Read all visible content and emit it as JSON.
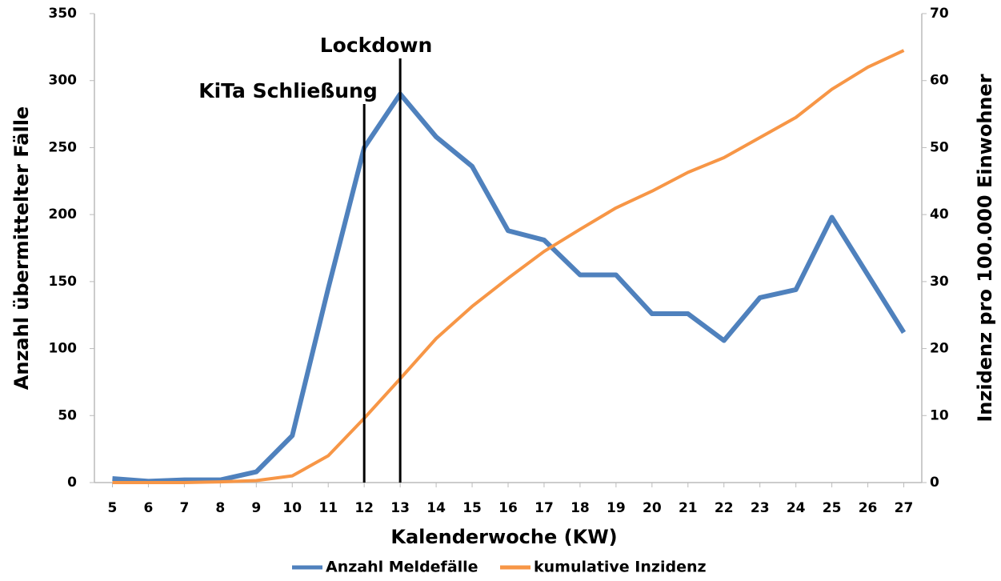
{
  "chart_data": {
    "type": "line",
    "x_label": "Kalenderwoche (KW)",
    "y_label": "Anzahl übermittelter Fälle",
    "y2_label": "Inzidenz pro 100.000 Einwohner",
    "x": [
      5,
      6,
      7,
      8,
      9,
      10,
      11,
      12,
      13,
      14,
      15,
      16,
      17,
      18,
      19,
      20,
      21,
      22,
      23,
      24,
      25,
      26,
      27
    ],
    "xlim": [
      4.5,
      27.5
    ],
    "xticks": [
      5,
      6,
      7,
      8,
      9,
      10,
      11,
      12,
      13,
      14,
      15,
      16,
      17,
      18,
      19,
      20,
      21,
      22,
      23,
      24,
      25,
      26,
      27
    ],
    "ylim": [
      0,
      350
    ],
    "yticks": [
      0,
      50,
      100,
      150,
      200,
      250,
      300,
      350
    ],
    "y2lim": [
      0,
      70
    ],
    "y2ticks": [
      0,
      10,
      20,
      30,
      40,
      50,
      60,
      70
    ],
    "grid": false,
    "legend": "bottom",
    "series": [
      {
        "name": "Anzahl Meldefälle",
        "color": "#4f81bd",
        "values": [
          3,
          1,
          2,
          2,
          8,
          35,
          145,
          250,
          290,
          258,
          236,
          188,
          181,
          155,
          155,
          126,
          126,
          106,
          138,
          144,
          198,
          155,
          112
        ]
      },
      {
        "name": "kumulative Inzidenz",
        "color": "#f79646",
        "axis": "y2",
        "values": [
          0,
          0,
          0,
          0.1,
          0.3,
          1,
          4,
          9.6,
          15.5,
          21.5,
          26.3,
          30.5,
          34.5,
          37.8,
          41,
          43.5,
          46.3,
          48.5,
          51.5,
          54.5,
          58.7,
          62,
          64.5
        ]
      }
    ],
    "annotations": [
      {
        "text": "KiTa Schließung",
        "x": 12
      },
      {
        "text": "Lockdown",
        "x": 13
      }
    ]
  }
}
